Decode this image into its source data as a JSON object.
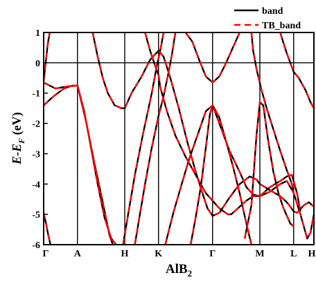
{
  "chart_data": {
    "type": "line",
    "title": "",
    "xlabel_main": "AlB",
    "xlabel_sub": "2",
    "ylabel_main": "E-E",
    "ylabel_sub": "F",
    "ylabel_unit": " (eV)",
    "ylim": [
      -6,
      1
    ],
    "yticks": [
      1,
      0,
      -1,
      -2,
      -3,
      -4,
      -5,
      -6
    ],
    "ytick_labels": [
      "1",
      "0",
      "-1",
      "-2",
      "-3",
      "-4",
      "-5",
      "-6"
    ],
    "xlim": [
      0,
      8
    ],
    "kpoints": [
      {
        "label": "Γ",
        "x": 0
      },
      {
        "label": "A",
        "x": 1
      },
      {
        "label": "H",
        "x": 2.4
      },
      {
        "label": "K",
        "x": 3.4
      },
      {
        "label": "Γ",
        "x": 5
      },
      {
        "label": "M",
        "x": 6.4
      },
      {
        "label": "L",
        "x": 7.4
      },
      {
        "label": "H",
        "x": 8
      }
    ],
    "fermi_level": 0,
    "legend_position": "top-right",
    "series": [
      {
        "name": "band",
        "color": "#000000",
        "dashed": false
      },
      {
        "name": "TB_band",
        "color": "#ff0000",
        "dashed": true
      }
    ],
    "bands": [
      [
        [
          0,
          -1.4
        ],
        [
          0.3,
          -1.1
        ],
        [
          0.6,
          -0.85
        ],
        [
          0.85,
          -0.75
        ],
        [
          1,
          -0.75
        ],
        [
          1.2,
          -1.6
        ],
        [
          1.4,
          -2.8
        ],
        [
          1.6,
          -4.0
        ],
        [
          1.8,
          -5.1
        ],
        [
          2.0,
          -5.8
        ],
        [
          2.15,
          -6
        ]
      ],
      [
        [
          0,
          -0.65
        ],
        [
          0.35,
          -0.85
        ],
        [
          0.7,
          -0.78
        ],
        [
          1,
          -0.75
        ],
        [
          1.25,
          -1.9
        ],
        [
          1.5,
          -3.3
        ],
        [
          1.75,
          -4.6
        ],
        [
          1.95,
          -5.7
        ],
        [
          2.05,
          -6
        ]
      ],
      [
        [
          0,
          -4.95
        ],
        [
          0.07,
          -5.3
        ],
        [
          0.14,
          -5.7
        ],
        [
          0.2,
          -6
        ]
      ],
      [
        [
          0,
          -0.6
        ],
        [
          0.06,
          0
        ],
        [
          0.12,
          0.6
        ],
        [
          0.18,
          1
        ]
      ],
      [
        [
          1.45,
          1
        ],
        [
          1.6,
          0.2
        ],
        [
          1.75,
          -0.5
        ],
        [
          1.9,
          -1.0
        ],
        [
          2.1,
          -1.4
        ],
        [
          2.3,
          -1.5
        ],
        [
          2.4,
          -1.5
        ],
        [
          2.6,
          -1.0
        ],
        [
          2.9,
          -0.45
        ],
        [
          3.15,
          0.1
        ],
        [
          3.4,
          0.4
        ],
        [
          3.55,
          0.2
        ],
        [
          3.75,
          -0.5
        ],
        [
          4.0,
          -1.5
        ],
        [
          4.25,
          -2.6
        ],
        [
          4.5,
          -3.6
        ],
        [
          4.7,
          -4.3
        ],
        [
          4.85,
          -4.8
        ],
        [
          5,
          -5.05
        ],
        [
          5.2,
          -4.95
        ],
        [
          5.5,
          -4.45
        ],
        [
          5.8,
          -4.0
        ],
        [
          6.1,
          -3.75
        ],
        [
          6.3,
          -3.85
        ],
        [
          6.4,
          -4.0
        ],
        [
          6.7,
          -4.2
        ],
        [
          7.0,
          -4.4
        ],
        [
          7.2,
          -4.6
        ],
        [
          7.4,
          -4.9
        ],
        [
          7.5,
          -4.95
        ],
        [
          7.7,
          -4.7
        ],
        [
          7.85,
          -4.6
        ],
        [
          8,
          -4.75
        ]
      ],
      [
        [
          3.0,
          1
        ],
        [
          3.15,
          0.4
        ],
        [
          3.3,
          -0.1
        ],
        [
          3.4,
          -0.4
        ],
        [
          3.45,
          -0.8
        ],
        [
          3.65,
          -1.6
        ],
        [
          3.9,
          -2.4
        ],
        [
          4.2,
          -3.1
        ],
        [
          4.5,
          -3.7
        ],
        [
          4.8,
          -4.3
        ],
        [
          5.0,
          -4.55
        ],
        [
          5.2,
          -4.8
        ],
        [
          5.45,
          -5.0
        ],
        [
          5.55,
          -5.0
        ],
        [
          5.75,
          -4.8
        ],
        [
          6.0,
          -4.55
        ],
        [
          6.2,
          -4.4
        ],
        [
          6.4,
          -4.4
        ],
        [
          6.7,
          -4.1
        ],
        [
          7.0,
          -3.9
        ],
        [
          7.2,
          -3.75
        ],
        [
          7.35,
          -3.7
        ],
        [
          7.5,
          -4.3
        ],
        [
          7.6,
          -4.9
        ]
      ],
      [
        [
          2.7,
          -6
        ],
        [
          2.85,
          -5.0
        ],
        [
          3.0,
          -4.0
        ],
        [
          3.2,
          -2.8
        ],
        [
          3.4,
          -1.75
        ],
        [
          3.55,
          -1.1
        ],
        [
          3.7,
          -0.3
        ],
        [
          3.8,
          0.3
        ],
        [
          3.9,
          1
        ]
      ],
      [
        [
          2.35,
          -6
        ],
        [
          2.5,
          -5.0
        ],
        [
          2.7,
          -3.7
        ],
        [
          2.95,
          -2.3
        ],
        [
          3.2,
          -1.0
        ],
        [
          3.35,
          -0.1
        ],
        [
          3.45,
          0.4
        ],
        [
          3.55,
          1
        ]
      ],
      [
        [
          3.6,
          -6
        ],
        [
          3.85,
          -4.9
        ],
        [
          4.1,
          -3.95
        ],
        [
          4.3,
          -3.2
        ],
        [
          4.55,
          -2.4
        ],
        [
          4.8,
          -1.6
        ],
        [
          5,
          -1.4
        ],
        [
          5.2,
          -1.8
        ],
        [
          5.4,
          -2.6
        ],
        [
          5.6,
          -3.4
        ],
        [
          5.8,
          -4.3
        ],
        [
          6.0,
          -5.3
        ],
        [
          6.15,
          -6
        ]
      ],
      [
        [
          4.35,
          -6
        ],
        [
          4.5,
          -5.1
        ],
        [
          4.65,
          -4.1
        ],
        [
          4.8,
          -2.8
        ],
        [
          4.92,
          -1.7
        ],
        [
          5,
          -1.4
        ],
        [
          5.2,
          -2.0
        ],
        [
          5.5,
          -2.9
        ],
        [
          5.8,
          -3.6
        ],
        [
          6.0,
          -4.1
        ],
        [
          6.2,
          -4.35
        ],
        [
          6.4,
          -4.4
        ],
        [
          6.7,
          -4.25
        ],
        [
          7.0,
          -4.0
        ],
        [
          7.2,
          -3.9
        ],
        [
          7.4,
          -4.3
        ],
        [
          7.6,
          -5.0
        ],
        [
          7.8,
          -5.8
        ],
        [
          7.9,
          -5.6
        ],
        [
          8,
          -5.0
        ]
      ],
      [
        [
          5.95,
          -5.8
        ],
        [
          6.15,
          -4.7
        ],
        [
          6.3,
          -2.4
        ],
        [
          6.4,
          -1.3
        ],
        [
          6.5,
          -1.4
        ],
        [
          6.65,
          -2.6
        ],
        [
          6.8,
          -3.6
        ],
        [
          6.95,
          -4.3
        ],
        [
          7.1,
          -4.8
        ],
        [
          7.3,
          -5.3
        ],
        [
          7.4,
          -5.4
        ]
      ],
      [
        [
          4.2,
          1
        ],
        [
          4.4,
          0.7
        ],
        [
          4.6,
          0.1
        ],
        [
          4.8,
          -0.45
        ],
        [
          5,
          -0.65
        ],
        [
          5.2,
          -0.45
        ],
        [
          5.4,
          0
        ],
        [
          5.6,
          0.5
        ],
        [
          5.8,
          1
        ]
      ],
      [
        [
          6.15,
          1
        ],
        [
          6.2,
          0.4
        ],
        [
          6.3,
          -0.2
        ],
        [
          6.45,
          -0.9
        ],
        [
          6.6,
          -1.5
        ],
        [
          6.8,
          -2.2
        ],
        [
          7.0,
          -2.9
        ],
        [
          7.2,
          -3.55
        ],
        [
          7.35,
          -4.0
        ],
        [
          7.4,
          -4.3
        ]
      ],
      [
        [
          7.0,
          1
        ],
        [
          7.2,
          0.3
        ],
        [
          7.4,
          -0.3
        ],
        [
          7.55,
          -0.5
        ],
        [
          7.75,
          -0.9
        ],
        [
          7.9,
          -1.3
        ],
        [
          8,
          -1.5
        ]
      ]
    ]
  }
}
